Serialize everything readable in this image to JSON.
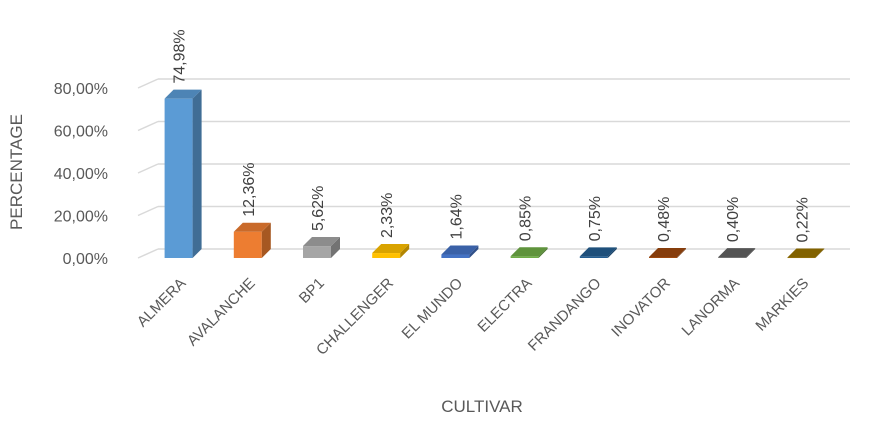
{
  "chart_data": {
    "type": "bar",
    "title": "",
    "xlabel": "CULTIVAR",
    "ylabel": "PERCENTAGE",
    "ylim": [
      0,
      80
    ],
    "yticks": [
      0,
      20,
      40,
      60,
      80
    ],
    "ytick_labels": [
      "0,00%",
      "20,00%",
      "40,00%",
      "60,00%",
      "80,00%"
    ],
    "grid": true,
    "style": "3d-column",
    "categories": [
      "ALMERA",
      "AVALANCHE",
      "BP1",
      "CHALLENGER",
      "EL MUNDO",
      "ELECTRA",
      "FRANDANGO",
      "INOVATOR",
      "LANORMA",
      "MARKIES"
    ],
    "values": [
      74.98,
      12.36,
      5.62,
      2.33,
      1.64,
      0.85,
      0.75,
      0.48,
      0.4,
      0.22
    ],
    "data_labels": [
      "74,98%",
      "12,36%",
      "5,62%",
      "2,33%",
      "1,64%",
      "0,85%",
      "0,75%",
      "0,48%",
      "0,40%",
      "0,22%"
    ],
    "colors": [
      "#5B9BD5",
      "#ED7D31",
      "#A5A5A5",
      "#FFC000",
      "#4472C4",
      "#70AD47",
      "#255E91",
      "#9E480E",
      "#636363",
      "#997300"
    ]
  }
}
